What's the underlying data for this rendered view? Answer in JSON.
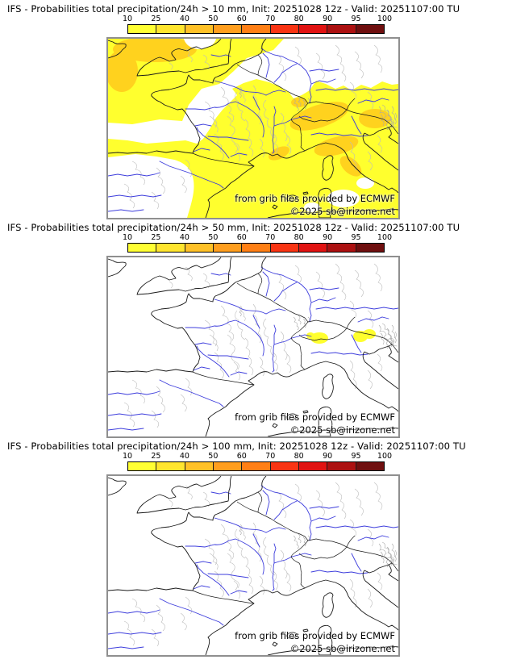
{
  "panels": [
    {
      "title": "IFS - Probabilities total precipitation/24h > 10 mm, Init: 20251028 12z - Valid: 20251107:00 TU",
      "threshold_mm": "10",
      "overlay": "heavy"
    },
    {
      "title": "IFS - Probabilities total precipitation/24h > 50 mm, Init: 20251028 12z - Valid: 20251107:00 TU",
      "threshold_mm": "50",
      "overlay": "spots"
    },
    {
      "title": "IFS - Probabilities total precipitation/24h > 100 mm, Init: 20251028 12z - Valid: 20251107:00 TU",
      "threshold_mm": "100",
      "overlay": "none"
    }
  ],
  "colorbar": {
    "ticks": [
      "10",
      "25",
      "40",
      "50",
      "60",
      "70",
      "80",
      "90",
      "95",
      "100"
    ],
    "colors": [
      "#ffff33",
      "#ffe52e",
      "#ffc127",
      "#ff9e1e",
      "#ff7f15",
      "#f93413",
      "#e11312",
      "#ac1111",
      "#6f0f0f"
    ]
  },
  "map": {
    "attribution_line1": "from grib files provided by ECMWF",
    "attribution_line2": "©2025 sb@irizone.net",
    "colors": {
      "river": "#3c3cdc",
      "coast": "#1a1a1a",
      "admin": "#bcbcbc",
      "frame": "#8f8f8f",
      "precip_low": "#ffff2e",
      "precip_mid": "#ffd21e"
    }
  },
  "chart_data": {
    "type": "heatmap",
    "title": "IFS ensemble probability maps of 24h total precipitation over France/W-Europe",
    "maps": [
      {
        "threshold": "> 10 mm",
        "coverage": "large yellow areas (10-25%) over NW seas, Brittany, SE France, Alps, N Italy; orange patches (25-50%) over Cornwall, Alps, Liguria, NE Italy"
      },
      {
        "threshold": "> 50 mm",
        "coverage": "two small yellow spots (10-25%) over the western and eastern Alps"
      },
      {
        "threshold": "> 100 mm",
        "coverage": "no areas above 10%"
      }
    ],
    "legend_ticks": [
      10,
      25,
      40,
      50,
      60,
      70,
      80,
      90,
      95,
      100
    ],
    "init": "20251028 12z",
    "valid": "20251107:00 TU"
  }
}
